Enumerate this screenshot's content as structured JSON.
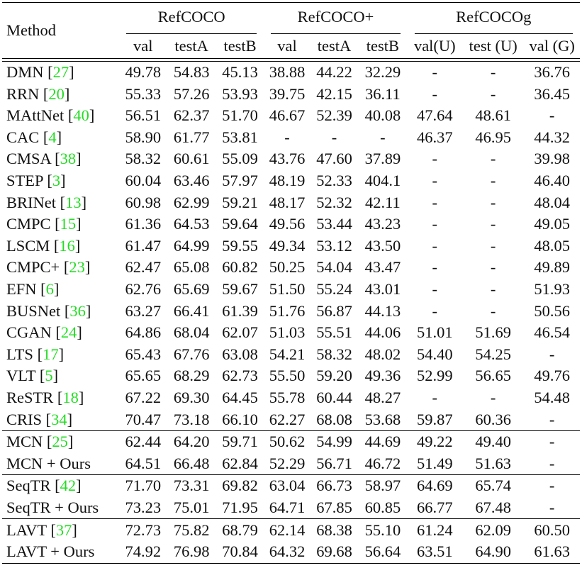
{
  "table": {
    "method_header": "Method",
    "groups": [
      {
        "name": "RefCOCO",
        "columns": [
          "val",
          "testA",
          "testB"
        ]
      },
      {
        "name": "RefCOCO+",
        "columns": [
          "val",
          "testA",
          "testB"
        ]
      },
      {
        "name": "RefCOCOg",
        "columns": [
          "val(U)",
          "test (U)",
          "val (G)"
        ]
      }
    ],
    "citation_color": "#22dd22",
    "sections": [
      {
        "rows": [
          {
            "method": "DMN",
            "cite": "27",
            "bold": false,
            "values": [
              "49.78",
              "54.83",
              "45.13",
              "38.88",
              "44.22",
              "32.29",
              "-",
              "-",
              "36.76"
            ]
          },
          {
            "method": "RRN",
            "cite": "20",
            "bold": false,
            "values": [
              "55.33",
              "57.26",
              "53.93",
              "39.75",
              "42.15",
              "36.11",
              "-",
              "-",
              "36.45"
            ]
          },
          {
            "method": "MAttNet",
            "cite": "40",
            "bold": false,
            "values": [
              "56.51",
              "62.37",
              "51.70",
              "46.67",
              "52.39",
              "40.08",
              "47.64",
              "48.61",
              "-"
            ]
          },
          {
            "method": "CAC",
            "cite": "4",
            "bold": false,
            "values": [
              "58.90",
              "61.77",
              "53.81",
              "-",
              "-",
              "-",
              "46.37",
              "46.95",
              "44.32"
            ]
          },
          {
            "method": "CMSA",
            "cite": "38",
            "bold": false,
            "values": [
              "58.32",
              "60.61",
              "55.09",
              "43.76",
              "47.60",
              "37.89",
              "-",
              "-",
              "39.98"
            ]
          },
          {
            "method": "STEP",
            "cite": "3",
            "bold": false,
            "values": [
              "60.04",
              "63.46",
              "57.97",
              "48.19",
              "52.33",
              "404.1",
              "-",
              "-",
              "46.40"
            ]
          },
          {
            "method": "BRINet",
            "cite": "13",
            "bold": false,
            "values": [
              "60.98",
              "62.99",
              "59.21",
              "48.17",
              "52.32",
              "42.11",
              "-",
              "-",
              "48.04"
            ]
          },
          {
            "method": "CMPC",
            "cite": "15",
            "bold": false,
            "values": [
              "61.36",
              "64.53",
              "59.64",
              "49.56",
              "53.44",
              "43.23",
              "-",
              "-",
              "49.05"
            ]
          },
          {
            "method": "LSCM",
            "cite": "16",
            "bold": false,
            "values": [
              "61.47",
              "64.99",
              "59.55",
              "49.34",
              "53.12",
              "43.50",
              "-",
              "-",
              "48.05"
            ]
          },
          {
            "method": "CMPC+",
            "cite": "23",
            "bold": false,
            "values": [
              "62.47",
              "65.08",
              "60.82",
              "50.25",
              "54.04",
              "43.47",
              "-",
              "-",
              "49.89"
            ]
          },
          {
            "method": "EFN",
            "cite": "6",
            "bold": false,
            "values": [
              "62.76",
              "65.69",
              "59.67",
              "51.50",
              "55.24",
              "43.01",
              "-",
              "-",
              "51.93"
            ]
          },
          {
            "method": "BUSNet",
            "cite": "36",
            "bold": false,
            "values": [
              "63.27",
              "66.41",
              "61.39",
              "51.76",
              "56.87",
              "44.13",
              "-",
              "-",
              "50.56"
            ]
          },
          {
            "method": "CGAN",
            "cite": "24",
            "bold": false,
            "values": [
              "64.86",
              "68.04",
              "62.07",
              "51.03",
              "55.51",
              "44.06",
              "51.01",
              "51.69",
              "46.54"
            ]
          },
          {
            "method": "LTS",
            "cite": "17",
            "bold": false,
            "values": [
              "65.43",
              "67.76",
              "63.08",
              "54.21",
              "58.32",
              "48.02",
              "54.40",
              "54.25",
              "-"
            ]
          },
          {
            "method": "VLT",
            "cite": "5",
            "bold": false,
            "values": [
              "65.65",
              "68.29",
              "62.73",
              "55.50",
              "59.20",
              "49.36",
              "52.99",
              "56.65",
              "49.76"
            ]
          },
          {
            "method": "ReSTR",
            "cite": "18",
            "bold": false,
            "values": [
              "67.22",
              "69.30",
              "64.45",
              "55.78",
              "60.44",
              "48.27",
              "-",
              "-",
              "54.48"
            ]
          },
          {
            "method": "CRIS",
            "cite": "34",
            "bold": false,
            "values": [
              "70.47",
              "73.18",
              "66.10",
              "62.27",
              "68.08",
              "53.68",
              "59.87",
              "60.36",
              "-"
            ]
          }
        ]
      },
      {
        "rows": [
          {
            "method": "MCN",
            "cite": "25",
            "bold": false,
            "values": [
              "62.44",
              "64.20",
              "59.71",
              "50.62",
              "54.99",
              "44.69",
              "49.22",
              "49.40",
              "-"
            ]
          },
          {
            "method": "MCN + Ours",
            "cite": null,
            "bold": true,
            "values": [
              "64.51",
              "66.48",
              "62.84",
              "52.29",
              "56.71",
              "46.72",
              "51.49",
              "51.63",
              "-"
            ]
          }
        ]
      },
      {
        "rows": [
          {
            "method": "SeqTR",
            "cite": "42",
            "bold": false,
            "values": [
              "71.70",
              "73.31",
              "69.82",
              "63.04",
              "66.73",
              "58.97",
              "64.69",
              "65.74",
              "-"
            ]
          },
          {
            "method": "SeqTR + Ours",
            "cite": null,
            "bold": true,
            "values": [
              "73.23",
              "75.01",
              "71.95",
              "64.71",
              "67.85",
              "60.85",
              "66.77",
              "67.48",
              "-"
            ]
          }
        ]
      },
      {
        "rows": [
          {
            "method": "LAVT",
            "cite": "37",
            "bold": false,
            "values": [
              "72.73",
              "75.82",
              "68.79",
              "62.14",
              "68.38",
              "55.10",
              "61.24",
              "62.09",
              "60.50"
            ]
          },
          {
            "method": "LAVT + Ours",
            "cite": null,
            "bold": true,
            "values": [
              "74.92",
              "76.98",
              "70.84",
              "64.32",
              "69.68",
              "56.64",
              "63.51",
              "64.90",
              "61.63"
            ]
          }
        ]
      }
    ]
  }
}
